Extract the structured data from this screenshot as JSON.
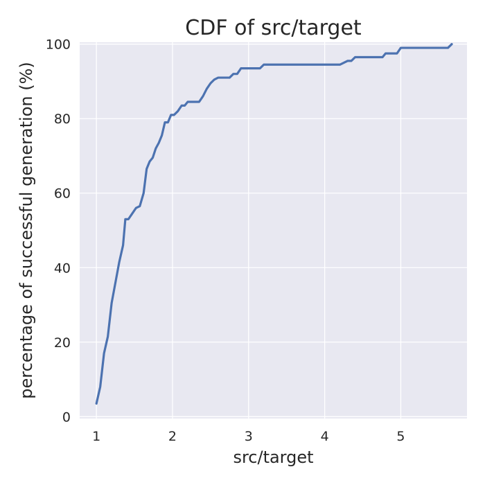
{
  "chart_data": {
    "type": "line",
    "title": "CDF of src/target",
    "xlabel": "src/target",
    "ylabel": "percentage of successful generation (%)",
    "xlim": [
      0.78,
      5.87
    ],
    "ylim": [
      -0.5,
      100.5
    ],
    "xticks": [
      1,
      2,
      3,
      4,
      5
    ],
    "xtick_labels": [
      "1",
      "2",
      "3",
      "4",
      "5"
    ],
    "yticks": [
      0,
      20,
      40,
      60,
      80,
      100
    ],
    "ytick_labels": [
      "0",
      "20",
      "40",
      "60",
      "80",
      "100"
    ],
    "grid": true,
    "colors": {
      "background": "#e8e8f1",
      "grid": "#ffffff",
      "line": "#4c72b0",
      "text": "#262626"
    },
    "series": [
      {
        "x": [
          1.0,
          1.05,
          1.1,
          1.15,
          1.2,
          1.25,
          1.3,
          1.35,
          1.38,
          1.42,
          1.47,
          1.52,
          1.57,
          1.62,
          1.66,
          1.7,
          1.74,
          1.78,
          1.82,
          1.86,
          1.9,
          1.94,
          1.98,
          2.02,
          2.07,
          2.12,
          2.16,
          2.2,
          2.25,
          2.3,
          2.35,
          2.4,
          2.45,
          2.5,
          2.55,
          2.6,
          2.64,
          2.7,
          2.75,
          2.8,
          2.85,
          2.9,
          2.95,
          3.0,
          3.05,
          3.1,
          3.15,
          3.2,
          3.25,
          3.3,
          3.4,
          3.5,
          3.6,
          3.7,
          3.8,
          3.9,
          4.0,
          4.1,
          4.2,
          4.3,
          4.35,
          4.4,
          4.45,
          4.5,
          4.6,
          4.7,
          4.76,
          4.8,
          4.85,
          4.9,
          4.95,
          5.0,
          5.05,
          5.1,
          5.2,
          5.3,
          5.4,
          5.5,
          5.6,
          5.62,
          5.67
        ],
        "y": [
          3.5,
          8,
          17,
          21.5,
          30.5,
          36,
          41.5,
          46,
          53,
          53,
          54.5,
          56,
          56.5,
          60,
          66.5,
          68.5,
          69.5,
          72,
          73.5,
          75.5,
          79,
          79,
          81,
          81,
          82,
          83.5,
          83.5,
          84.5,
          84.5,
          84.5,
          84.5,
          86,
          88,
          89.5,
          90.5,
          91,
          91,
          91,
          91,
          92,
          92,
          93.5,
          93.5,
          93.5,
          93.5,
          93.5,
          93.5,
          94.5,
          94.5,
          94.5,
          94.5,
          94.5,
          94.5,
          94.5,
          94.5,
          94.5,
          94.5,
          94.5,
          94.5,
          95.5,
          95.5,
          96.5,
          96.5,
          96.5,
          96.5,
          96.5,
          96.5,
          97.5,
          97.5,
          97.5,
          97.5,
          99,
          99,
          99,
          99,
          99,
          99,
          99,
          99,
          99,
          100
        ]
      }
    ]
  }
}
